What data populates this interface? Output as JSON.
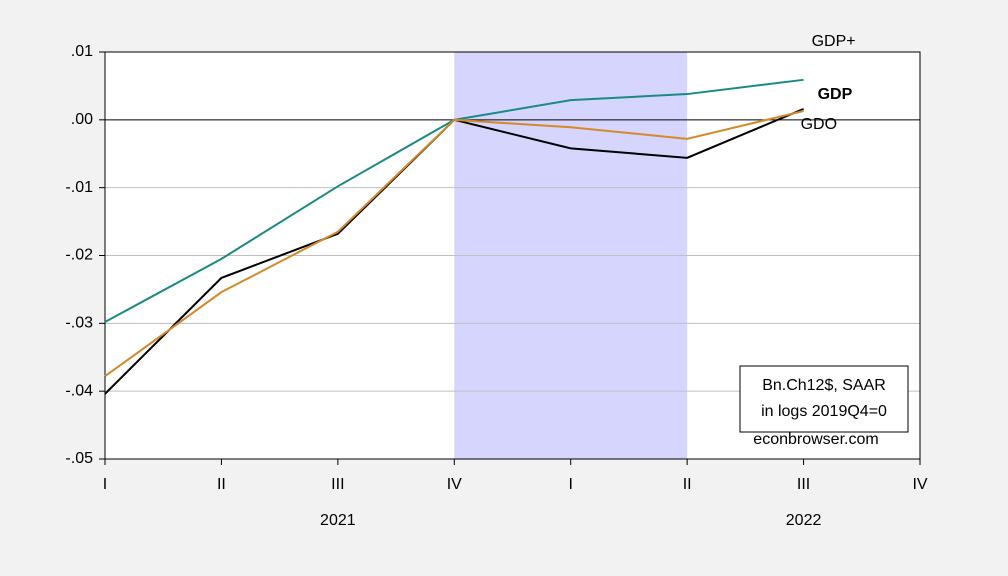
{
  "chart_data": {
    "type": "line",
    "categories": [
      "I",
      "II",
      "III",
      "IV",
      "I",
      "II",
      "III",
      "IV"
    ],
    "x_groups": [
      "2021",
      "2022"
    ],
    "series": [
      {
        "name": "GDP+",
        "color": "#1a8a82",
        "values": [
          -0.0298,
          -0.0205,
          -0.0098,
          0,
          0.0029,
          0.0038,
          0.0059,
          null
        ]
      },
      {
        "name": "GDP",
        "color": "#000000",
        "values": [
          -0.0404,
          -0.0233,
          -0.0168,
          0,
          -0.0042,
          -0.0056,
          0.0016,
          null
        ]
      },
      {
        "name": "GDO",
        "color": "#d4892a",
        "values": [
          -0.0378,
          -0.0254,
          -0.0165,
          0,
          -0.0011,
          -0.0028,
          0.0013,
          null
        ]
      }
    ],
    "ylim": [
      -0.05,
      0.01
    ],
    "yticks": [
      {
        "value": -0.05,
        "label": "-.05"
      },
      {
        "value": -0.04,
        "label": "-.04"
      },
      {
        "value": -0.03,
        "label": "-.03"
      },
      {
        "value": -0.02,
        "label": "-.02"
      },
      {
        "value": -0.01,
        "label": "-.01"
      },
      {
        "value": 0,
        "label": ".00"
      },
      {
        "value": 0.01,
        "label": ".01"
      }
    ],
    "grid": true,
    "shaded": {
      "from": 3,
      "to": 5,
      "color": "#d5d5fd"
    },
    "annotations": [
      "Bn.Ch12$, SAAR",
      "in logs 2019Q4=0"
    ],
    "source": "econbrowser.com"
  }
}
